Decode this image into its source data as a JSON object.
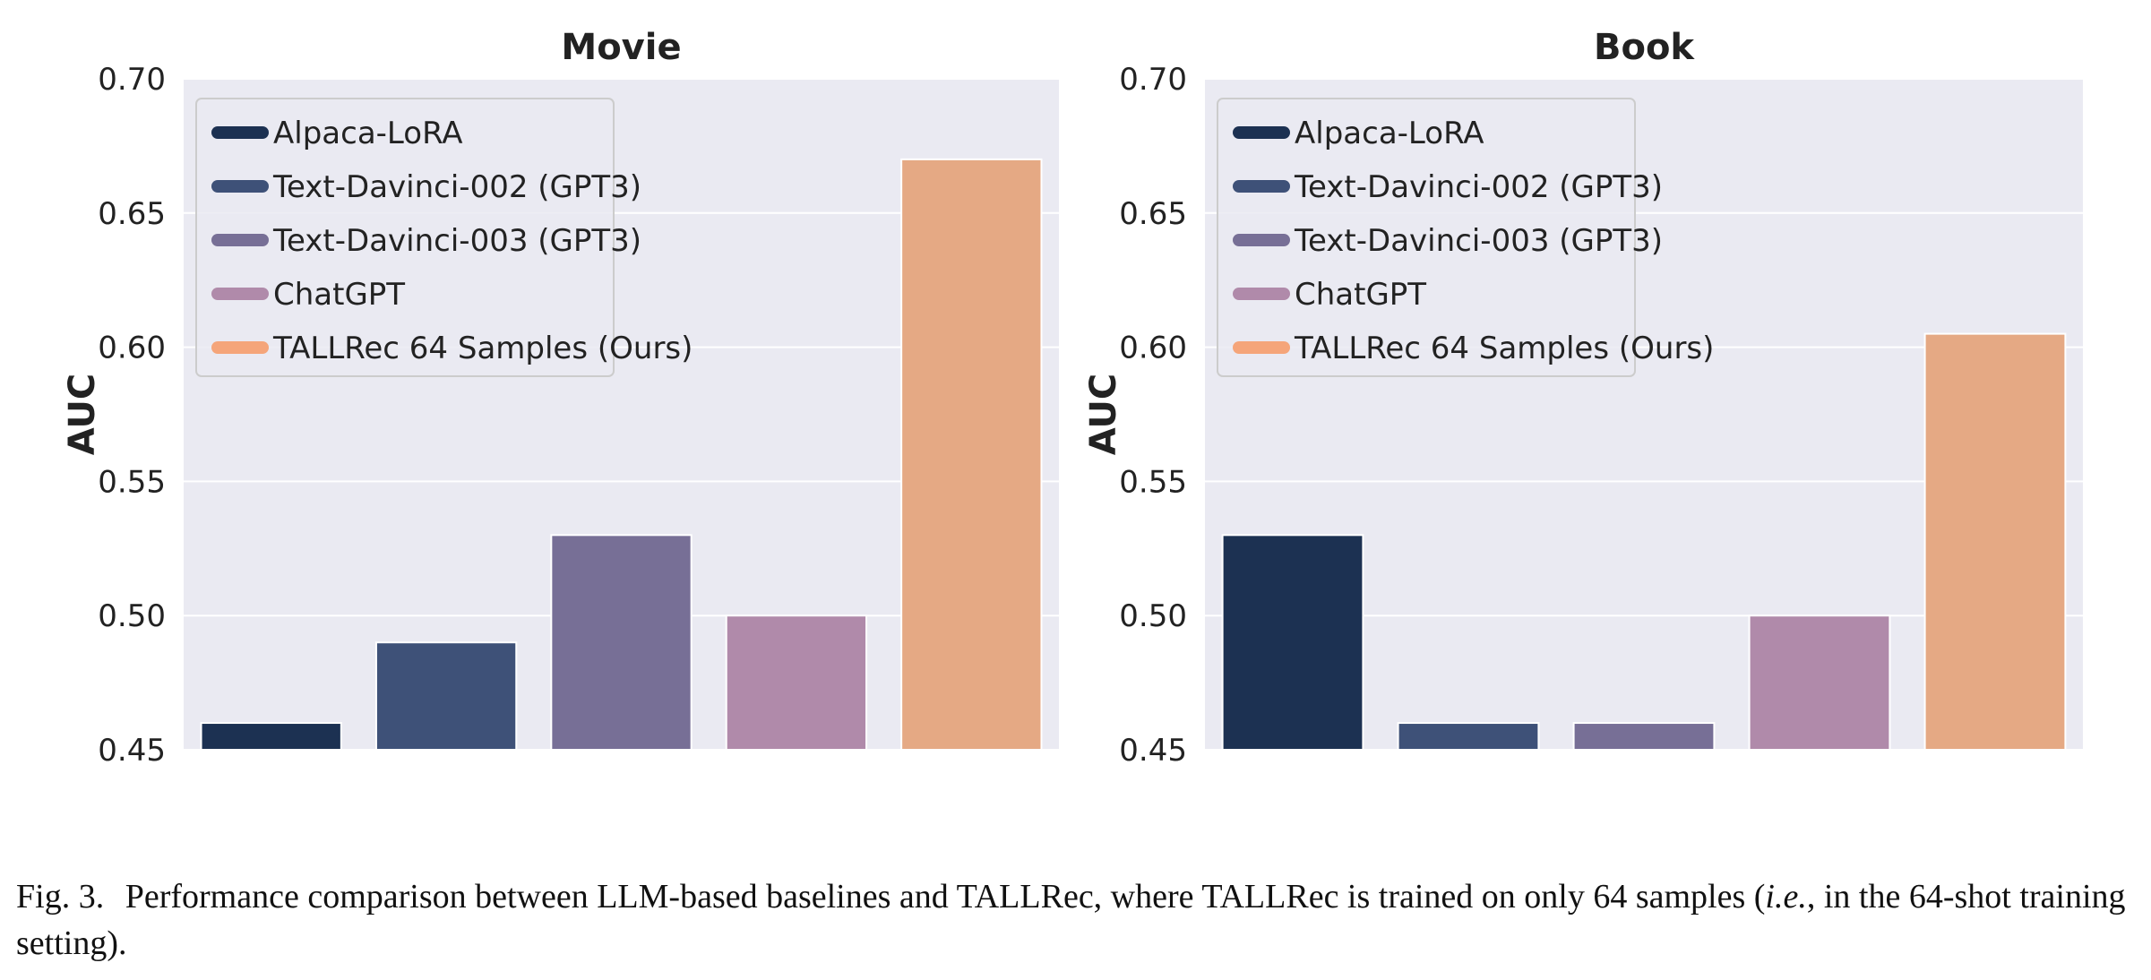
{
  "chart_data": [
    {
      "type": "bar",
      "title": "Movie",
      "xlabel": "",
      "ylabel": "AUC",
      "ylim": [
        0.45,
        0.7
      ],
      "yticks": [
        "0.45",
        "0.50",
        "0.55",
        "0.60",
        "0.65",
        "0.70"
      ],
      "grid": true,
      "legend_position": "top-left",
      "categories": [
        "Alpaca-LoRA",
        "Text-Davinci-002 (GPT3)",
        "Text-Davinci-003 (GPT3)",
        "ChatGPT",
        "TALLRec 64 Samples (Ours)"
      ],
      "values": [
        0.46,
        0.49,
        0.53,
        0.5,
        0.67
      ],
      "colors": [
        "#1c3152",
        "#3e5178",
        "#776f96",
        "#b08aaa",
        "#e5a984"
      ]
    },
    {
      "type": "bar",
      "title": "Book",
      "xlabel": "",
      "ylabel": "AUC",
      "ylim": [
        0.45,
        0.7
      ],
      "yticks": [
        "0.45",
        "0.50",
        "0.55",
        "0.60",
        "0.65",
        "0.70"
      ],
      "grid": true,
      "legend_position": "top-left",
      "categories": [
        "Alpaca-LoRA",
        "Text-Davinci-002 (GPT3)",
        "Text-Davinci-003 (GPT3)",
        "ChatGPT",
        "TALLRec 64 Samples (Ours)"
      ],
      "values": [
        0.53,
        0.46,
        0.46,
        0.5,
        0.605
      ],
      "colors": [
        "#1c3152",
        "#3e5178",
        "#776f96",
        "#b08aaa",
        "#e5a984"
      ]
    }
  ],
  "legend_swatch_colors": [
    "#1c3152",
    "#3e5178",
    "#776f96",
    "#b08aaa",
    "#f5a57a"
  ],
  "caption": {
    "fig_num": "Fig. 3.",
    "text_before": "Performance comparison between LLM-based baselines and TALLRec, where TALLRec is trained on only 64 samples (",
    "text_italic": "i.e.",
    "text_after": ", in the 64-shot training setting)."
  }
}
